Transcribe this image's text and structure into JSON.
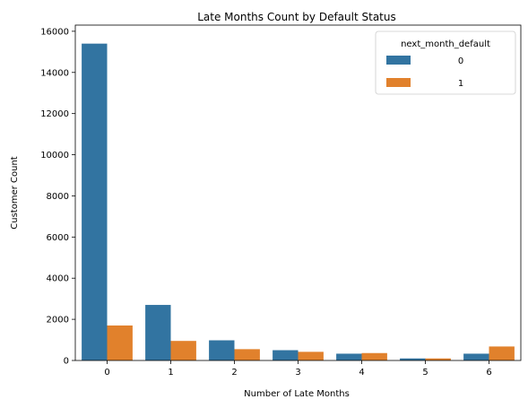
{
  "chart_data": {
    "type": "bar",
    "title": "Late Months Count by Default Status",
    "xlabel": "Number of Late Months",
    "ylabel": "Customer Count",
    "categories": [
      "0",
      "1",
      "2",
      "3",
      "4",
      "5",
      "6"
    ],
    "series": [
      {
        "name": "0",
        "color": "#3274a1",
        "values": [
          15400,
          2700,
          980,
          500,
          330,
          100,
          330
        ]
      },
      {
        "name": "1",
        "color": "#e1812c",
        "values": [
          1700,
          950,
          550,
          420,
          360,
          100,
          680
        ]
      }
    ],
    "ylim": [
      0,
      16300
    ],
    "yticks": [
      0,
      2000,
      4000,
      6000,
      8000,
      10000,
      12000,
      14000,
      16000
    ],
    "legend": {
      "title": "next_month_default",
      "placement": "top-right"
    },
    "grid": false
  }
}
